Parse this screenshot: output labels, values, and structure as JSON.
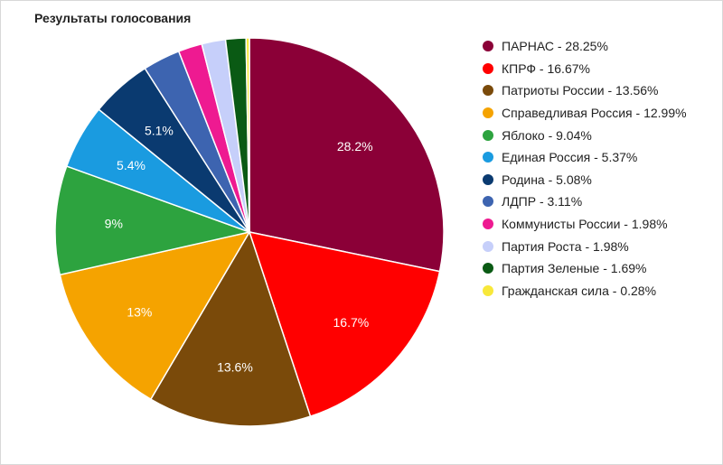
{
  "chart_data": {
    "type": "pie",
    "title": "Результаты голосования",
    "legend_position": "right",
    "series": [
      {
        "values": [
          28.25,
          16.67,
          13.56,
          12.99,
          9.04,
          5.37,
          5.08,
          3.11,
          1.98,
          1.98,
          1.69,
          0.28
        ]
      }
    ],
    "categories": [
      "ПАРНАС",
      "КПРФ",
      "Патриоты России",
      "Справедливая Россия",
      "Яблоко",
      "Единая Россия",
      "Родина",
      "ЛДПР",
      "Коммунисты России",
      "Партия Роста",
      "Партия Зеленые",
      "Гражданская сила"
    ],
    "colors": [
      "#8b0037",
      "#ff0000",
      "#7a4a0a",
      "#f5a300",
      "#2da33f",
      "#1a9be0",
      "#0a3a70",
      "#3d64b0",
      "#ee1a91",
      "#c6cffa",
      "#0a5a14",
      "#f8e83a"
    ],
    "legend_entries": [
      "ПАРНАС - 28.25%",
      "КПРФ - 16.67%",
      "Патриоты России - 13.56%",
      "Справедливая Россия - 12.99%",
      "Яблоко - 9.04%",
      "Единая Россия - 5.37%",
      "Родина - 5.08%",
      "ЛДПР - 3.11%",
      "Коммунисты России - 1.98%",
      "Партия Роста - 1.98%",
      "Партия Зеленые - 1.69%",
      "Гражданская сила - 0.28%"
    ],
    "slice_labels": [
      "28.2%",
      "16.7%",
      "13.6%",
      "13%",
      "9%",
      "5.4%",
      "5.1%",
      "",
      "",
      "",
      "",
      ""
    ]
  }
}
